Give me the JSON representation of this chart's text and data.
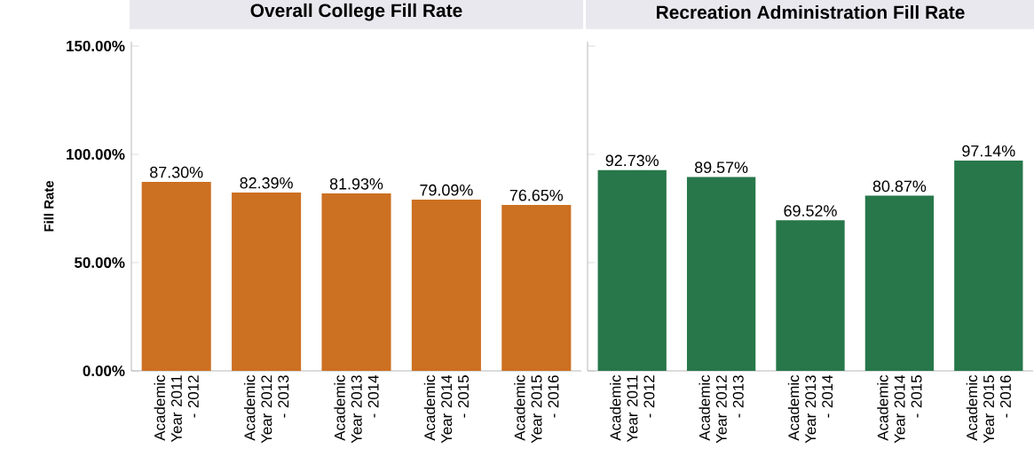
{
  "chart_data": [
    {
      "type": "bar",
      "title": "Overall College Fill Rate",
      "ylabel": "Fill Rate",
      "categories": [
        "Academic Year 2011 - 2012",
        "Academic Year 2012 - 2013",
        "Academic Year 2013 - 2014",
        "Academic Year 2014 - 2015",
        "Academic Year 2015 - 2016"
      ],
      "values": [
        87.3,
        82.39,
        81.93,
        79.09,
        76.65
      ],
      "value_labels": [
        "87.30%",
        "82.39%",
        "81.93%",
        "79.09%",
        "76.65%"
      ],
      "color": "#cc7022",
      "ylim": [
        0,
        152
      ],
      "yticks": [
        {
          "value": 0,
          "label": "0.00%"
        },
        {
          "value": 50,
          "label": "50.00%"
        },
        {
          "value": 100,
          "label": "100.00%"
        },
        {
          "value": 150,
          "label": "150.00%"
        }
      ]
    },
    {
      "type": "bar",
      "title": "Recreation Administration Fill Rate",
      "categories": [
        "Academic Year 2011 - 2012",
        "Academic Year 2012 - 2013",
        "Academic Year 2013 - 2014",
        "Academic Year 2014 - 2015",
        "Academic Year 2015 - 2016"
      ],
      "values": [
        92.73,
        89.57,
        69.52,
        80.87,
        97.14
      ],
      "value_labels": [
        "92.73%",
        "89.57%",
        "69.52%",
        "80.87%",
        "97.14%"
      ],
      "color": "#27774a",
      "ylim": [
        0,
        152
      ],
      "yticks": [
        {
          "value": 0,
          "label": null
        },
        {
          "value": 50,
          "label": null
        },
        {
          "value": 100,
          "label": null
        },
        {
          "value": 150,
          "label": null
        }
      ],
      "tick_labels": "x"
    }
  ]
}
